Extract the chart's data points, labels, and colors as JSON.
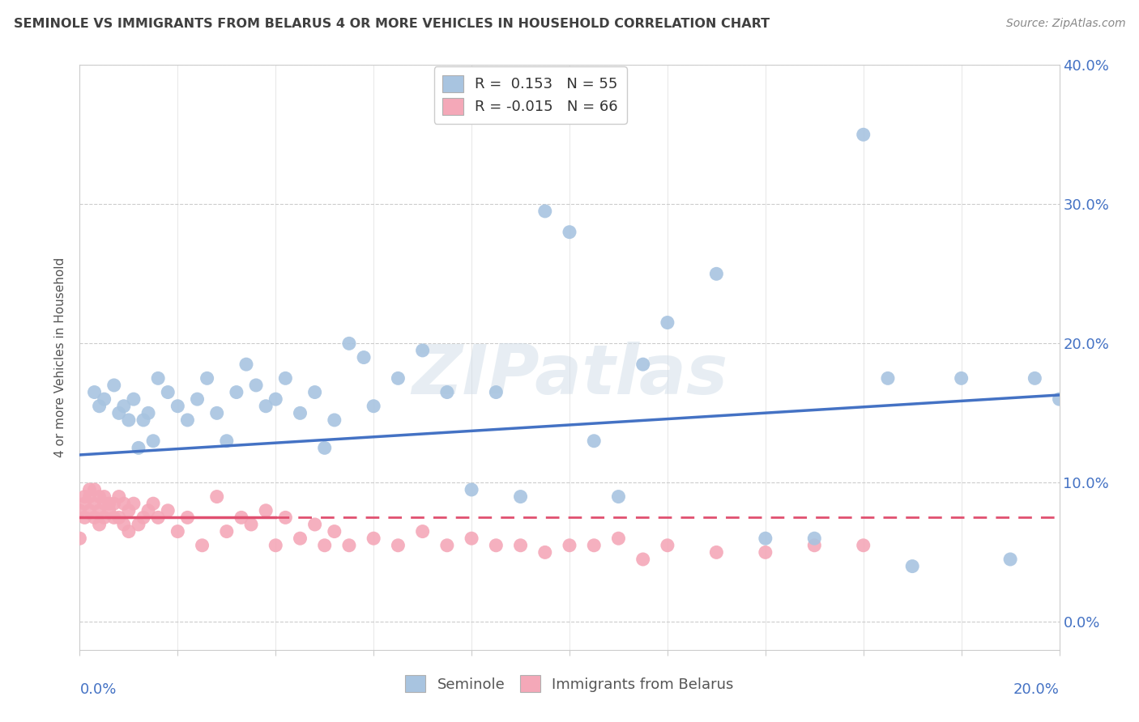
{
  "title": "SEMINOLE VS IMMIGRANTS FROM BELARUS 4 OR MORE VEHICLES IN HOUSEHOLD CORRELATION CHART",
  "source": "Source: ZipAtlas.com",
  "ylabel": "4 or more Vehicles in Household",
  "legend_blue_label": "Seminole",
  "legend_pink_label": "Immigrants from Belarus",
  "legend_r_blue": "R =  0.153",
  "legend_n_blue": "N = 55",
  "legend_r_pink": "R = -0.015",
  "legend_n_pink": "N = 66",
  "blue_color": "#a8c4e0",
  "pink_color": "#f4a8b8",
  "blue_line_color": "#4472c4",
  "pink_line_color": "#e05070",
  "title_color": "#404040",
  "axis_label_color": "#4472c4",
  "background_color": "#ffffff",
  "watermark": "ZIPatlas",
  "ylim_min": -0.02,
  "ylim_max": 0.4,
  "xlim_min": 0.0,
  "xlim_max": 0.2,
  "yticks": [
    0.0,
    0.1,
    0.2,
    0.3,
    0.4
  ],
  "ytick_labels": [
    "0.0%",
    "10.0%",
    "20.0%",
    "30.0%",
    "40.0%"
  ],
  "xtick_labels_show": [
    "0.0%",
    "20.0%"
  ],
  "seminole_x": [
    0.003,
    0.004,
    0.005,
    0.007,
    0.008,
    0.009,
    0.01,
    0.011,
    0.012,
    0.013,
    0.014,
    0.015,
    0.016,
    0.018,
    0.02,
    0.022,
    0.024,
    0.026,
    0.028,
    0.03,
    0.032,
    0.034,
    0.036,
    0.038,
    0.04,
    0.042,
    0.045,
    0.048,
    0.05,
    0.052,
    0.055,
    0.058,
    0.06,
    0.065,
    0.07,
    0.075,
    0.08,
    0.085,
    0.09,
    0.095,
    0.1,
    0.105,
    0.11,
    0.115,
    0.12,
    0.13,
    0.14,
    0.15,
    0.16,
    0.165,
    0.17,
    0.18,
    0.19,
    0.195,
    0.2
  ],
  "seminole_y": [
    0.165,
    0.155,
    0.16,
    0.17,
    0.15,
    0.155,
    0.145,
    0.16,
    0.125,
    0.145,
    0.15,
    0.13,
    0.175,
    0.165,
    0.155,
    0.145,
    0.16,
    0.175,
    0.15,
    0.13,
    0.165,
    0.185,
    0.17,
    0.155,
    0.16,
    0.175,
    0.15,
    0.165,
    0.125,
    0.145,
    0.2,
    0.19,
    0.155,
    0.175,
    0.195,
    0.165,
    0.095,
    0.165,
    0.09,
    0.295,
    0.28,
    0.13,
    0.09,
    0.185,
    0.215,
    0.25,
    0.06,
    0.06,
    0.35,
    0.175,
    0.04,
    0.175,
    0.045,
    0.175,
    0.16
  ],
  "belarus_x": [
    0.0,
    0.0,
    0.001,
    0.001,
    0.001,
    0.002,
    0.002,
    0.002,
    0.003,
    0.003,
    0.003,
    0.004,
    0.004,
    0.004,
    0.005,
    0.005,
    0.005,
    0.006,
    0.006,
    0.007,
    0.007,
    0.008,
    0.008,
    0.009,
    0.009,
    0.01,
    0.01,
    0.011,
    0.012,
    0.013,
    0.014,
    0.015,
    0.016,
    0.018,
    0.02,
    0.022,
    0.025,
    0.028,
    0.03,
    0.033,
    0.035,
    0.038,
    0.04,
    0.042,
    0.045,
    0.048,
    0.05,
    0.052,
    0.055,
    0.06,
    0.065,
    0.07,
    0.075,
    0.08,
    0.085,
    0.09,
    0.095,
    0.1,
    0.105,
    0.11,
    0.115,
    0.12,
    0.13,
    0.14,
    0.15,
    0.16
  ],
  "belarus_y": [
    0.08,
    0.06,
    0.09,
    0.075,
    0.085,
    0.095,
    0.08,
    0.09,
    0.075,
    0.085,
    0.095,
    0.08,
    0.09,
    0.07,
    0.085,
    0.075,
    0.09,
    0.08,
    0.085,
    0.075,
    0.085,
    0.09,
    0.075,
    0.07,
    0.085,
    0.08,
    0.065,
    0.085,
    0.07,
    0.075,
    0.08,
    0.085,
    0.075,
    0.08,
    0.065,
    0.075,
    0.055,
    0.09,
    0.065,
    0.075,
    0.07,
    0.08,
    0.055,
    0.075,
    0.06,
    0.07,
    0.055,
    0.065,
    0.055,
    0.06,
    0.055,
    0.065,
    0.055,
    0.06,
    0.055,
    0.055,
    0.05,
    0.055,
    0.055,
    0.06,
    0.045,
    0.055,
    0.05,
    0.05,
    0.055,
    0.055
  ]
}
